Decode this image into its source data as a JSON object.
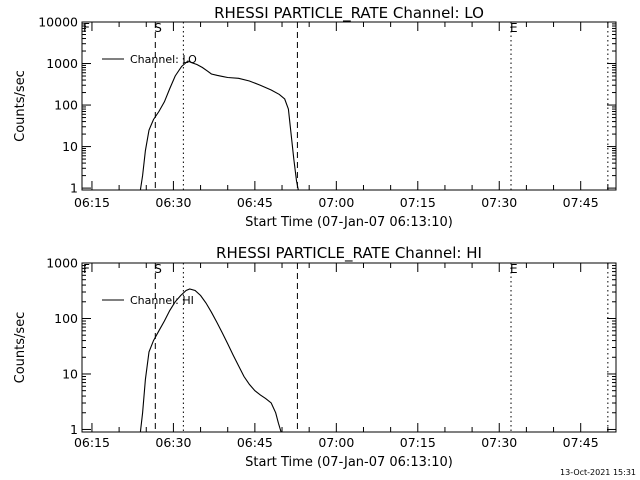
{
  "chart_data": [
    {
      "type": "line",
      "title": "RHESSI PARTICLE_RATE Channel: LO",
      "xlabel": "Start Time (07-Jan-07 06:13:10)",
      "ylabel": "Counts/sec",
      "yscale": "log",
      "xlim": [
        "06:13:10",
        "07:51:30"
      ],
      "ylim": [
        0.9,
        10000
      ],
      "xticks": [
        "06:15",
        "06:30",
        "06:45",
        "07:00",
        "07:15",
        "07:30",
        "07:45"
      ],
      "yticks": [
        "1",
        "10",
        "100",
        "1000",
        "10000"
      ],
      "legend": "top-left",
      "grid": false,
      "series": [
        {
          "name": "Channel: LO",
          "x": [
            "06:23:55",
            "06:24:20",
            "06:24:50",
            "06:25:30",
            "06:26:20",
            "06:27:20",
            "06:28:20",
            "06:29:20",
            "06:30:20",
            "06:31:30",
            "06:32:40",
            "06:33:20",
            "06:34:20",
            "06:35:20",
            "06:36:20",
            "06:37:00",
            "06:38:00",
            "06:39:00",
            "06:40:00",
            "06:42:00",
            "06:44:00",
            "06:46:00",
            "06:48:00",
            "06:49:30",
            "06:50:30",
            "06:51:10",
            "06:51:40",
            "06:52:10",
            "06:52:40",
            "06:53:00"
          ],
          "y": [
            0.9,
            2,
            8,
            25,
            45,
            70,
            120,
            250,
            500,
            850,
            1150,
            1050,
            950,
            800,
            650,
            560,
            520,
            490,
            460,
            440,
            380,
            300,
            230,
            180,
            140,
            80,
            20,
            5,
            1.5,
            0.9
          ]
        }
      ],
      "vlines": [
        {
          "x": "06:26:40",
          "style": "dashed"
        },
        {
          "x": "06:31:50",
          "style": "dotted"
        },
        {
          "x": "06:52:50",
          "style": "dashed"
        },
        {
          "x": "07:32:10",
          "style": "dotted"
        },
        {
          "x": "07:50:00",
          "style": "dotted"
        }
      ],
      "markers": [
        {
          "text": "F",
          "x": "06:13:10"
        },
        {
          "text": "S",
          "x": "06:26:40"
        },
        {
          "text": "E",
          "x": "07:32:10"
        }
      ]
    },
    {
      "type": "line",
      "title": "RHESSI PARTICLE_RATE Channel: HI",
      "xlabel": "Start Time (07-Jan-07 06:13:10)",
      "ylabel": "Counts/sec",
      "yscale": "log",
      "xlim": [
        "06:13:10",
        "07:51:30"
      ],
      "ylim": [
        0.9,
        1000
      ],
      "xticks": [
        "06:15",
        "06:30",
        "06:45",
        "07:00",
        "07:15",
        "07:30",
        "07:45"
      ],
      "yticks": [
        "1",
        "10",
        "100",
        "1000"
      ],
      "legend": "top-left",
      "grid": false,
      "series": [
        {
          "name": "Channel: HI",
          "x": [
            "06:23:55",
            "06:24:20",
            "06:24:50",
            "06:25:30",
            "06:26:20",
            "06:27:20",
            "06:28:20",
            "06:29:20",
            "06:30:20",
            "06:31:20",
            "06:32:20",
            "06:33:00",
            "06:34:00",
            "06:35:00",
            "06:36:00",
            "06:37:00",
            "06:38:00",
            "06:39:00",
            "06:40:00",
            "06:41:00",
            "06:42:00",
            "06:43:00",
            "06:44:00",
            "06:45:00",
            "06:46:00",
            "06:47:00",
            "06:48:00",
            "06:48:50",
            "06:49:20",
            "06:49:50"
          ],
          "y": [
            0.9,
            2,
            8,
            25,
            40,
            60,
            90,
            140,
            200,
            260,
            320,
            340,
            320,
            260,
            190,
            130,
            85,
            55,
            35,
            22,
            14,
            9,
            6.5,
            5,
            4.2,
            3.6,
            3,
            2,
            1.3,
            0.9
          ]
        }
      ],
      "vlines": [
        {
          "x": "06:26:40",
          "style": "dashed"
        },
        {
          "x": "06:31:50",
          "style": "dotted"
        },
        {
          "x": "06:52:50",
          "style": "dashed"
        },
        {
          "x": "07:32:10",
          "style": "dotted"
        },
        {
          "x": "07:50:00",
          "style": "dotted"
        }
      ],
      "markers": [
        {
          "text": "F",
          "x": "06:13:10"
        },
        {
          "text": "S",
          "x": "06:26:40"
        },
        {
          "text": "E",
          "x": "07:32:10"
        }
      ]
    }
  ],
  "footer": {
    "timestamp": "13-Oct-2021 15:31"
  }
}
